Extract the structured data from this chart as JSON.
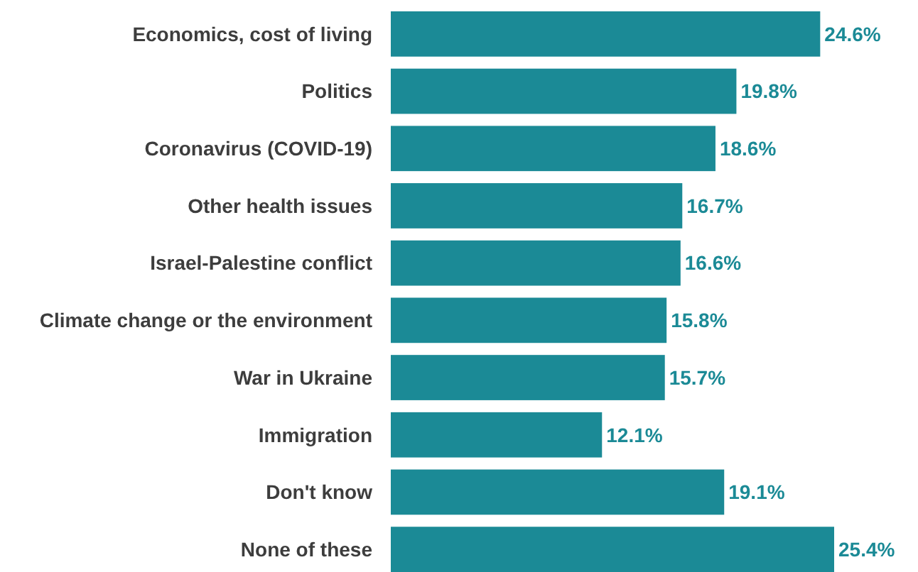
{
  "chart_data": {
    "type": "bar",
    "orientation": "horizontal",
    "categories": [
      "Economics, cost of living",
      "Politics",
      "Coronavirus (COVID-19)",
      "Other health issues",
      "Israel-Palestine conflict",
      "Climate change or the environment",
      "War in Ukraine",
      "Immigration",
      "Don't know",
      "None of these"
    ],
    "values": [
      24.6,
      19.8,
      18.6,
      16.7,
      16.6,
      15.8,
      15.7,
      12.1,
      19.1,
      25.4
    ],
    "value_labels": [
      "24.6%",
      "19.8%",
      "18.6%",
      "16.7%",
      "16.6%",
      "15.8%",
      "15.7%",
      "12.1%",
      "19.1%",
      "25.4%"
    ],
    "color": "#1b8a96"
  }
}
